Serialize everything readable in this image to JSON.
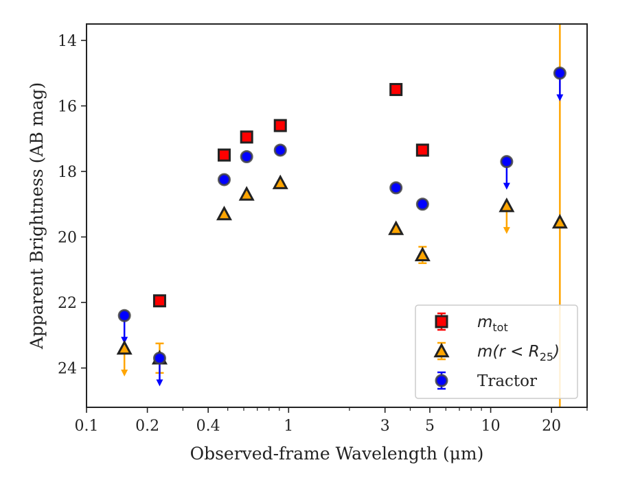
{
  "chart_data": {
    "type": "scatter",
    "xlabel": "Observed-frame Wavelength (μm)",
    "ylabel": "Apparent Brightness (AB mag)",
    "xscale": "log",
    "xlim": [
      0.1,
      30
    ],
    "ylim": [
      25.2,
      13.5
    ],
    "y_inverted": true,
    "grid": false,
    "legend_position": "bottom-right",
    "x_ticks": [
      {
        "value": 0.1,
        "label": "0.1"
      },
      {
        "value": 0.2,
        "label": "0.2"
      },
      {
        "value": 0.4,
        "label": "0.4"
      },
      {
        "value": 1,
        "label": "1"
      },
      {
        "value": 3,
        "label": "3"
      },
      {
        "value": 5,
        "label": "5"
      },
      {
        "value": 10,
        "label": "10"
      },
      {
        "value": 20,
        "label": "20"
      }
    ],
    "y_ticks": [
      {
        "value": 14,
        "label": "14"
      },
      {
        "value": 16,
        "label": "16"
      },
      {
        "value": 18,
        "label": "18"
      },
      {
        "value": 20,
        "label": "20"
      },
      {
        "value": 22,
        "label": "22"
      },
      {
        "value": 24,
        "label": "24"
      }
    ],
    "series": [
      {
        "name": "m_tot",
        "legend_main": "m",
        "legend_sub": "tot",
        "marker": "square",
        "color": "#ff0000",
        "edge_color": "#222222",
        "points": [
          {
            "x": 0.23,
            "y": 21.95
          },
          {
            "x": 0.48,
            "y": 17.5
          },
          {
            "x": 0.62,
            "y": 16.95
          },
          {
            "x": 0.91,
            "y": 16.6
          },
          {
            "x": 3.4,
            "y": 15.5
          },
          {
            "x": 4.6,
            "y": 17.35
          }
        ]
      },
      {
        "name": "m(r < R25)",
        "legend_main": "m(r < R",
        "legend_sub": "25",
        "legend_tail": ")",
        "marker": "triangle",
        "color": "#ffa500",
        "edge_color": "#222222",
        "points": [
          {
            "x": 0.154,
            "y": 23.4,
            "upper_limit": true
          },
          {
            "x": 0.23,
            "y": 23.7,
            "yerr": 0.45
          },
          {
            "x": 0.48,
            "y": 19.3
          },
          {
            "x": 0.62,
            "y": 18.7
          },
          {
            "x": 0.91,
            "y": 18.35
          },
          {
            "x": 3.4,
            "y": 19.75
          },
          {
            "x": 4.6,
            "y": 20.55,
            "yerr": 0.25
          },
          {
            "x": 12.0,
            "y": 19.05,
            "upper_limit": true
          },
          {
            "x": 22.0,
            "y": 19.55,
            "yerr": 30
          }
        ]
      },
      {
        "name": "Tractor",
        "marker": "circle",
        "color": "#0000ff",
        "edge_color": "#444444",
        "points": [
          {
            "x": 0.154,
            "y": 22.4,
            "upper_limit": true
          },
          {
            "x": 0.23,
            "y": 23.7,
            "upper_limit": true
          },
          {
            "x": 0.48,
            "y": 18.25
          },
          {
            "x": 0.62,
            "y": 17.55
          },
          {
            "x": 0.91,
            "y": 17.35
          },
          {
            "x": 3.4,
            "y": 18.5
          },
          {
            "x": 4.6,
            "y": 19.0
          },
          {
            "x": 12.0,
            "y": 17.7,
            "upper_limit": true
          },
          {
            "x": 22.0,
            "y": 15.0,
            "upper_limit": true
          }
        ]
      }
    ]
  }
}
